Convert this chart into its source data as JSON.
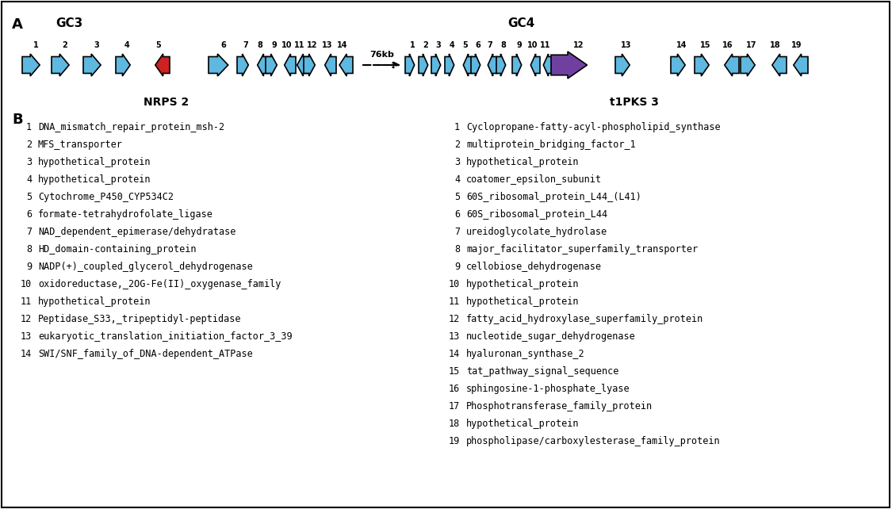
{
  "title_A": "A",
  "label_GC3": "GC3",
  "label_GC4": "GC4",
  "label_B": "B",
  "label_NRPS2": "NRPS 2",
  "label_t1PKS3": "t1PKS 3",
  "label_76kb": "76kb",
  "bg_color": "#ffffff",
  "border_color": "#000000",
  "gene_color_blue": "#5eb8e0",
  "gene_color_red": "#cc2222",
  "gene_color_purple": "#7040a0",
  "line_color": "#000000",
  "gc3_genes": [
    {
      "num": 1,
      "dir": 1
    },
    {
      "num": 2,
      "dir": 1
    },
    {
      "num": 3,
      "dir": 1
    },
    {
      "num": 4,
      "dir": 1
    },
    {
      "num": 5,
      "dir": -1,
      "color": "red"
    },
    {
      "num": 6,
      "dir": 1
    },
    {
      "num": 7,
      "dir": 1
    },
    {
      "num": 8,
      "dir": -1
    },
    {
      "num": 9,
      "dir": 1
    },
    {
      "num": 10,
      "dir": -1
    },
    {
      "num": 11,
      "dir": -1
    },
    {
      "num": 12,
      "dir": 1
    },
    {
      "num": 13,
      "dir": -1
    },
    {
      "num": 14,
      "dir": -1
    }
  ],
  "gc4_genes": [
    {
      "num": 1,
      "dir": 1
    },
    {
      "num": 2,
      "dir": 1
    },
    {
      "num": 3,
      "dir": 1
    },
    {
      "num": 4,
      "dir": 1
    },
    {
      "num": 5,
      "dir": -1
    },
    {
      "num": 6,
      "dir": 1
    },
    {
      "num": 7,
      "dir": -1
    },
    {
      "num": 8,
      "dir": 1
    },
    {
      "num": 9,
      "dir": 1
    },
    {
      "num": 10,
      "dir": -1
    },
    {
      "num": 11,
      "dir": -1
    },
    {
      "num": 12,
      "dir": 1,
      "color": "purple",
      "large": true
    },
    {
      "num": 13,
      "dir": 1
    },
    {
      "num": 14,
      "dir": 1
    },
    {
      "num": 15,
      "dir": 1
    },
    {
      "num": 16,
      "dir": -1
    },
    {
      "num": 17,
      "dir": 1
    },
    {
      "num": 18,
      "dir": -1
    },
    {
      "num": 19,
      "dir": -1
    }
  ],
  "gc3_labels": [
    "1  DNA_mismatch_repair_protein_msh-2",
    "2  MFS_transporter",
    "3  hypothetical_protein",
    "4  hypothetical_protein",
    "5  Cytochrome_P450_CYP534C2",
    "6  formate-tetrahydrofolate_ligase",
    "7  NAD_dependent_epimerase/dehydratase",
    "8  HD_domain-containing_protein",
    "9  NADP(+)_coupled_glycerol_dehydrogenase",
    "10  oxidoreductase,_2OG-Fe(II)_oxygenase_family",
    "11  hypothetical_protein",
    "12  Peptidase_S33,_tripeptidyl-peptidase",
    "13  eukaryotic_translation_initiation_factor_3_39",
    "14  SWI/SNF_family_of_DNA-dependent_ATPase"
  ],
  "gc4_labels": [
    "1  Cyclopropane-fatty-acyl-phospholipid_synthase",
    "2  multiprotein_bridging_factor_1",
    "3  hypothetical_protein",
    "4  coatomer_epsilon_subunit",
    "5  60S_ribosomal_protein_L44_(L41)",
    "6  60S_ribosomal_protein_L44",
    "7  ureidoglycolate_hydrolase",
    "8  major_facilitator_superfamily_transporter",
    "9  cellobiose_dehydrogenase",
    "10  hypothetical_protein",
    "11  hypothetical_protein",
    "12  fatty_acid_hydroxylase_superfamily_protein",
    "13  nucleotide_sugar_dehydrogenase",
    "14  hyaluronan_synthase_2",
    "15  tat_pathway_signal_sequence",
    "16  sphingosine-1-phosphate_lyase",
    "17  Phosphotransferase_family_protein",
    "18  hypothetical_protein",
    "19  phospholipase/carboxylesterase_family_protein"
  ]
}
